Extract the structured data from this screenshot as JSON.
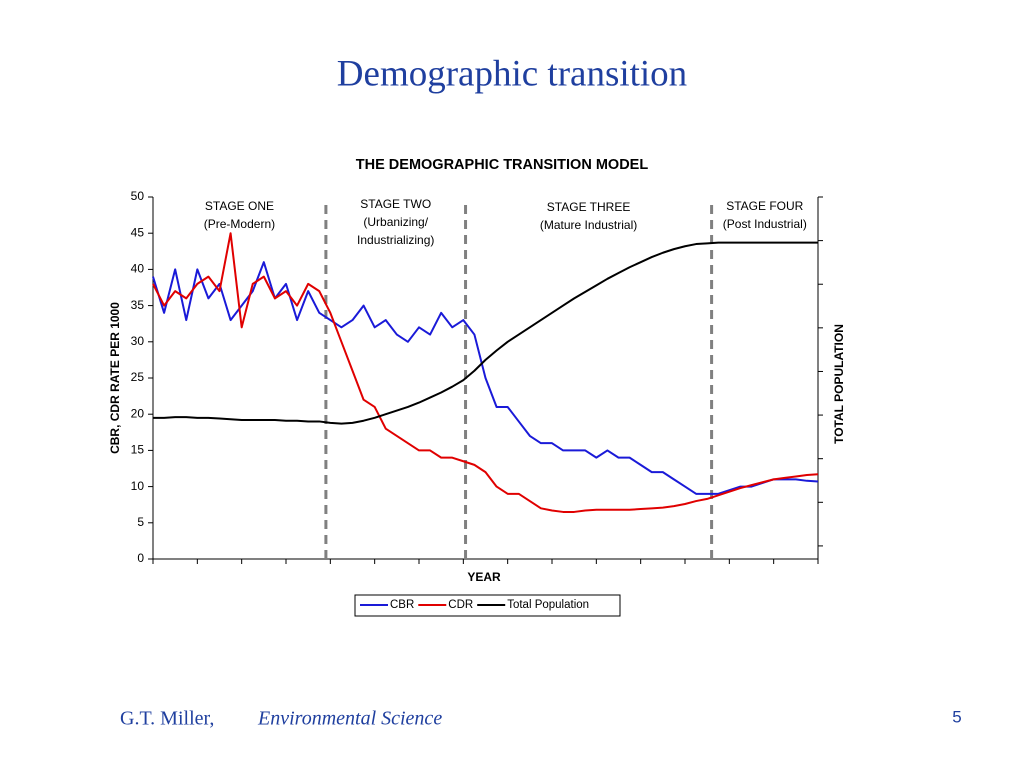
{
  "slide": {
    "title": "Demographic transition",
    "author": "G.T. Miller,",
    "book": "Environmental Science",
    "page": "5"
  },
  "chart_data": {
    "type": "line",
    "title": "THE DEMOGRAPHIC TRANSITION MODEL",
    "x_label": "YEAR",
    "y_label": "CBR, CDR RATE PER 1000",
    "y2_label": "TOTAL POPULATION",
    "ylim": [
      0,
      50
    ],
    "yticks": [
      0,
      5,
      10,
      15,
      20,
      25,
      30,
      35,
      40,
      45,
      50
    ],
    "xlim": [
      0,
      60
    ],
    "legend": "bottom",
    "dividers": [
      15.6,
      28.2,
      50.4
    ],
    "stages": [
      {
        "name": "STAGE ONE",
        "detail": "(Pre-Modern)"
      },
      {
        "name": "STAGE TWO",
        "detail": "(Urbanizing/",
        "detail2": "Industrializing)"
      },
      {
        "name": "STAGE THREE",
        "detail": "(Mature Industrial)"
      },
      {
        "name": "STAGE FOUR",
        "detail": "(Post Industrial)"
      }
    ],
    "series": [
      {
        "name": "CBR",
        "color": "#1a1ad8",
        "values": [
          39,
          34,
          40,
          33,
          40,
          36,
          38,
          33,
          35,
          37,
          41,
          36,
          38,
          33,
          37,
          34,
          33,
          32,
          33,
          35,
          32,
          33,
          31,
          30,
          32,
          31,
          34,
          32,
          33,
          31,
          25,
          21,
          21,
          19,
          17,
          16,
          16,
          15,
          15,
          15,
          14,
          15,
          14,
          14,
          13,
          12,
          12,
          11,
          10,
          9,
          9,
          9,
          9.5,
          10,
          10,
          10.5,
          11,
          11,
          11,
          10.8,
          10.7
        ]
      },
      {
        "name": "CDR",
        "color": "#e00000",
        "values": [
          38,
          35,
          37,
          36,
          38,
          39,
          37,
          45,
          32,
          38,
          39,
          36,
          37,
          35,
          38,
          37,
          34,
          30,
          26,
          22,
          21,
          18,
          17,
          16,
          15,
          15,
          14,
          14,
          13.5,
          13,
          12,
          10,
          9,
          9,
          8,
          7,
          6.7,
          6.5,
          6.5,
          6.7,
          6.8,
          6.8,
          6.8,
          6.8,
          6.9,
          7,
          7.1,
          7.3,
          7.6,
          8,
          8.3,
          8.8,
          9.3,
          9.8,
          10.2,
          10.6,
          11,
          11.2,
          11.4,
          11.6,
          11.7
        ]
      },
      {
        "name": "Total Population",
        "color": "#000000",
        "values": [
          19.5,
          19.5,
          19.6,
          19.6,
          19.5,
          19.5,
          19.4,
          19.3,
          19.2,
          19.2,
          19.2,
          19.2,
          19.1,
          19.1,
          19,
          19,
          18.8,
          18.7,
          18.8,
          19.1,
          19.5,
          20,
          20.5,
          21,
          21.6,
          22.3,
          23,
          23.8,
          24.7,
          26,
          27.5,
          28.8,
          30,
          31,
          32,
          33,
          34,
          35,
          36,
          36.9,
          37.8,
          38.7,
          39.5,
          40.3,
          41,
          41.7,
          42.3,
          42.8,
          43.2,
          43.5,
          43.6,
          43.7,
          43.7,
          43.7,
          43.7,
          43.7,
          43.7,
          43.7,
          43.7,
          43.7,
          43.7
        ]
      }
    ]
  }
}
